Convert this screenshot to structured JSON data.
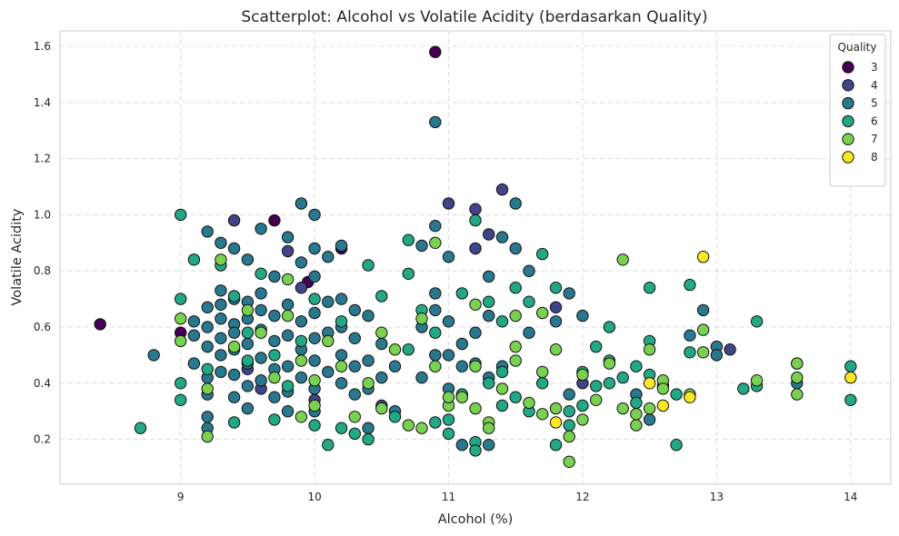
{
  "chart_data": {
    "type": "scatter",
    "title": "Scatterplot: Alcohol vs Volatile Acidity (berdasarkan Quality)",
    "xlabel": "Alcohol (%)",
    "ylabel": "Volatile Acidity",
    "xlim": [
      8.1,
      14.3
    ],
    "ylim": [
      0.04,
      1.655
    ],
    "xticks": [
      9,
      10,
      11,
      12,
      13,
      14
    ],
    "yticks": [
      0.2,
      0.4,
      0.6,
      0.8,
      1.0,
      1.2,
      1.4,
      1.6
    ],
    "ytick_labels": [
      "0.2",
      "0.4",
      "0.6",
      "0.8",
      "1.0",
      "1.2",
      "1.4",
      "1.6"
    ],
    "grid": true,
    "legend": {
      "title": "Quality",
      "placement": "top-right"
    },
    "series": [
      {
        "name": "3",
        "color": "#440154",
        "points": [
          [
            8.4,
            0.61
          ],
          [
            9.0,
            0.58
          ],
          [
            9.7,
            0.98
          ],
          [
            9.95,
            0.76
          ],
          [
            10.2,
            0.88
          ],
          [
            10.9,
            1.58
          ]
        ]
      },
      {
        "name": "4",
        "color": "#414487",
        "points": [
          [
            9.4,
            0.98
          ],
          [
            9.6,
            0.38
          ],
          [
            9.8,
            0.87
          ],
          [
            9.9,
            0.74
          ],
          [
            10.0,
            0.34
          ],
          [
            11.0,
            1.04
          ],
          [
            11.2,
            1.02
          ],
          [
            11.2,
            0.88
          ],
          [
            11.3,
            0.93
          ],
          [
            11.4,
            1.09
          ],
          [
            11.8,
            0.67
          ],
          [
            12.0,
            0.4
          ],
          [
            13.1,
            0.52
          ],
          [
            9.5,
            0.45
          ],
          [
            10.5,
            0.32
          ]
        ]
      },
      {
        "name": "5",
        "color": "#2a788e",
        "points": [
          [
            8.8,
            0.5
          ],
          [
            9.1,
            0.57
          ],
          [
            9.1,
            0.62
          ],
          [
            9.1,
            0.47
          ],
          [
            9.2,
            0.53
          ],
          [
            9.2,
            0.94
          ],
          [
            9.2,
            0.6
          ],
          [
            9.2,
            0.42
          ],
          [
            9.2,
            0.36
          ],
          [
            9.2,
            0.28
          ],
          [
            9.2,
            0.24
          ],
          [
            9.2,
            0.67
          ],
          [
            9.3,
            0.9
          ],
          [
            9.3,
            0.56
          ],
          [
            9.3,
            0.68
          ],
          [
            9.3,
            0.73
          ],
          [
            9.3,
            0.44
          ],
          [
            9.3,
            0.63
          ],
          [
            9.3,
            0.5
          ],
          [
            9.4,
            0.88
          ],
          [
            9.4,
            0.7
          ],
          [
            9.4,
            0.61
          ],
          [
            9.4,
            0.52
          ],
          [
            9.4,
            0.43
          ],
          [
            9.4,
            0.35
          ],
          [
            9.4,
            0.58
          ],
          [
            9.5,
            0.84
          ],
          [
            9.5,
            0.69
          ],
          [
            9.5,
            0.63
          ],
          [
            9.5,
            0.54
          ],
          [
            9.5,
            0.47
          ],
          [
            9.5,
            0.39
          ],
          [
            9.5,
            0.31
          ],
          [
            9.6,
            0.95
          ],
          [
            9.6,
            0.72
          ],
          [
            9.6,
            0.66
          ],
          [
            9.6,
            0.59
          ],
          [
            9.6,
            0.49
          ],
          [
            9.6,
            0.41
          ],
          [
            9.7,
            0.78
          ],
          [
            9.7,
            0.64
          ],
          [
            9.7,
            0.55
          ],
          [
            9.7,
            0.45
          ],
          [
            9.7,
            0.35
          ],
          [
            9.8,
            0.92
          ],
          [
            9.8,
            0.68
          ],
          [
            9.8,
            0.57
          ],
          [
            9.8,
            0.46
          ],
          [
            9.8,
            0.37
          ],
          [
            9.8,
            0.3
          ],
          [
            9.9,
            1.04
          ],
          [
            9.9,
            0.83
          ],
          [
            9.9,
            0.62
          ],
          [
            9.9,
            0.52
          ],
          [
            9.9,
            0.42
          ],
          [
            10.0,
            1.0
          ],
          [
            10.0,
            0.88
          ],
          [
            10.0,
            0.78
          ],
          [
            10.0,
            0.65
          ],
          [
            10.0,
            0.56
          ],
          [
            10.0,
            0.48
          ],
          [
            10.0,
            0.38
          ],
          [
            10.0,
            0.3
          ],
          [
            10.1,
            0.85
          ],
          [
            10.1,
            0.69
          ],
          [
            10.1,
            0.58
          ],
          [
            10.1,
            0.44
          ],
          [
            10.2,
            0.89
          ],
          [
            10.2,
            0.7
          ],
          [
            10.2,
            0.6
          ],
          [
            10.2,
            0.5
          ],
          [
            10.2,
            0.4
          ],
          [
            10.3,
            0.66
          ],
          [
            10.3,
            0.56
          ],
          [
            10.3,
            0.46
          ],
          [
            10.3,
            0.36
          ],
          [
            10.4,
            0.64
          ],
          [
            10.4,
            0.48
          ],
          [
            10.4,
            0.38
          ],
          [
            10.4,
            0.24
          ],
          [
            10.5,
            0.54
          ],
          [
            10.5,
            0.42
          ],
          [
            10.6,
            0.46
          ],
          [
            10.6,
            0.3
          ],
          [
            10.8,
            0.6
          ],
          [
            10.8,
            0.42
          ],
          [
            10.8,
            0.89
          ],
          [
            10.9,
            1.33
          ],
          [
            10.9,
            0.96
          ],
          [
            10.9,
            0.72
          ],
          [
            10.9,
            0.66
          ],
          [
            10.9,
            0.5
          ],
          [
            11.0,
            0.85
          ],
          [
            11.0,
            0.62
          ],
          [
            11.0,
            0.5
          ],
          [
            11.0,
            0.38
          ],
          [
            11.1,
            0.54
          ],
          [
            11.1,
            0.46
          ],
          [
            11.1,
            0.18
          ],
          [
            11.2,
            0.58
          ],
          [
            11.2,
            0.47
          ],
          [
            11.3,
            0.78
          ],
          [
            11.3,
            0.64
          ],
          [
            11.3,
            0.42
          ],
          [
            11.3,
            0.18
          ],
          [
            11.4,
            0.92
          ],
          [
            11.4,
            0.46
          ],
          [
            11.5,
            1.04
          ],
          [
            11.5,
            0.88
          ],
          [
            11.6,
            0.8
          ],
          [
            11.6,
            0.58
          ],
          [
            11.8,
            0.62
          ],
          [
            11.9,
            0.72
          ],
          [
            11.9,
            0.36
          ],
          [
            12.0,
            0.64
          ],
          [
            12.5,
            0.27
          ],
          [
            12.8,
            0.57
          ],
          [
            12.9,
            0.66
          ],
          [
            13.0,
            0.53
          ],
          [
            13.0,
            0.5
          ],
          [
            13.6,
            0.4
          ],
          [
            12.4,
            0.36
          ]
        ]
      },
      {
        "name": "6",
        "color": "#22a884",
        "points": [
          [
            8.7,
            0.24
          ],
          [
            9.0,
            1.0
          ],
          [
            9.0,
            0.7
          ],
          [
            9.0,
            0.4
          ],
          [
            9.0,
            0.34
          ],
          [
            9.1,
            0.84
          ],
          [
            9.2,
            0.45
          ],
          [
            9.3,
            0.82
          ],
          [
            9.4,
            0.26
          ],
          [
            9.4,
            0.71
          ],
          [
            9.5,
            0.58
          ],
          [
            9.5,
            0.48
          ],
          [
            9.6,
            0.79
          ],
          [
            9.7,
            0.5
          ],
          [
            9.7,
            0.27
          ],
          [
            9.8,
            0.39
          ],
          [
            9.9,
            0.55
          ],
          [
            10.0,
            0.25
          ],
          [
            10.0,
            0.7
          ],
          [
            10.1,
            0.18
          ],
          [
            10.2,
            0.62
          ],
          [
            10.2,
            0.24
          ],
          [
            10.3,
            0.22
          ],
          [
            10.4,
            0.2
          ],
          [
            10.4,
            0.82
          ],
          [
            10.5,
            0.71
          ],
          [
            10.6,
            0.28
          ],
          [
            10.7,
            0.91
          ],
          [
            10.7,
            0.79
          ],
          [
            10.7,
            0.52
          ],
          [
            10.8,
            0.66
          ],
          [
            10.9,
            0.58
          ],
          [
            10.9,
            0.26
          ],
          [
            11.0,
            0.27
          ],
          [
            11.0,
            0.22
          ],
          [
            11.1,
            0.72
          ],
          [
            11.1,
            0.36
          ],
          [
            11.2,
            0.98
          ],
          [
            11.2,
            0.19
          ],
          [
            11.2,
            0.16
          ],
          [
            11.3,
            0.69
          ],
          [
            11.3,
            0.4
          ],
          [
            11.4,
            0.62
          ],
          [
            11.4,
            0.44
          ],
          [
            11.4,
            0.32
          ],
          [
            11.5,
            0.74
          ],
          [
            11.5,
            0.35
          ],
          [
            11.6,
            0.69
          ],
          [
            11.6,
            0.3
          ],
          [
            11.7,
            0.86
          ],
          [
            11.7,
            0.4
          ],
          [
            11.8,
            0.74
          ],
          [
            11.8,
            0.18
          ],
          [
            11.9,
            0.3
          ],
          [
            11.9,
            0.25
          ],
          [
            12.0,
            0.44
          ],
          [
            12.0,
            0.32
          ],
          [
            12.1,
            0.53
          ],
          [
            12.1,
            0.39
          ],
          [
            12.2,
            0.6
          ],
          [
            12.2,
            0.48
          ],
          [
            12.2,
            0.4
          ],
          [
            12.3,
            0.42
          ],
          [
            12.4,
            0.46
          ],
          [
            12.4,
            0.33
          ],
          [
            12.5,
            0.74
          ],
          [
            12.5,
            0.55
          ],
          [
            12.5,
            0.43
          ],
          [
            12.6,
            0.39
          ],
          [
            12.7,
            0.36
          ],
          [
            12.7,
            0.18
          ],
          [
            12.8,
            0.75
          ],
          [
            12.8,
            0.51
          ],
          [
            13.2,
            0.38
          ],
          [
            13.3,
            0.62
          ],
          [
            13.3,
            0.39
          ],
          [
            13.6,
            0.47
          ],
          [
            14.0,
            0.46
          ],
          [
            14.0,
            0.34
          ]
        ]
      },
      {
        "name": "7",
        "color": "#7ad151",
        "points": [
          [
            9.0,
            0.63
          ],
          [
            9.0,
            0.55
          ],
          [
            9.2,
            0.21
          ],
          [
            9.2,
            0.38
          ],
          [
            9.3,
            0.84
          ],
          [
            9.4,
            0.53
          ],
          [
            9.5,
            0.66
          ],
          [
            9.6,
            0.58
          ],
          [
            9.7,
            0.42
          ],
          [
            9.8,
            0.77
          ],
          [
            9.8,
            0.64
          ],
          [
            9.9,
            0.28
          ],
          [
            9.9,
            0.48
          ],
          [
            10.0,
            0.41
          ],
          [
            10.0,
            0.32
          ],
          [
            10.1,
            0.55
          ],
          [
            10.2,
            0.46
          ],
          [
            10.3,
            0.28
          ],
          [
            10.4,
            0.4
          ],
          [
            10.5,
            0.31
          ],
          [
            10.5,
            0.58
          ],
          [
            10.6,
            0.52
          ],
          [
            10.7,
            0.25
          ],
          [
            10.8,
            0.63
          ],
          [
            10.8,
            0.24
          ],
          [
            10.9,
            0.9
          ],
          [
            10.9,
            0.46
          ],
          [
            11.0,
            0.32
          ],
          [
            11.0,
            0.35
          ],
          [
            11.1,
            0.35
          ],
          [
            11.2,
            0.68
          ],
          [
            11.2,
            0.46
          ],
          [
            11.2,
            0.31
          ],
          [
            11.3,
            0.26
          ],
          [
            11.3,
            0.24
          ],
          [
            11.4,
            0.38
          ],
          [
            11.5,
            0.53
          ],
          [
            11.5,
            0.48
          ],
          [
            11.5,
            0.64
          ],
          [
            11.6,
            0.33
          ],
          [
            11.7,
            0.65
          ],
          [
            11.7,
            0.44
          ],
          [
            11.7,
            0.29
          ],
          [
            11.8,
            0.52
          ],
          [
            11.8,
            0.31
          ],
          [
            11.9,
            0.12
          ],
          [
            11.9,
            0.21
          ],
          [
            12.0,
            0.27
          ],
          [
            12.0,
            0.43
          ],
          [
            12.1,
            0.34
          ],
          [
            12.2,
            0.47
          ],
          [
            12.3,
            0.84
          ],
          [
            12.3,
            0.31
          ],
          [
            12.4,
            0.25
          ],
          [
            12.4,
            0.29
          ],
          [
            12.5,
            0.52
          ],
          [
            12.5,
            0.31
          ],
          [
            12.6,
            0.41
          ],
          [
            12.6,
            0.38
          ],
          [
            12.8,
            0.36
          ],
          [
            12.9,
            0.51
          ],
          [
            12.9,
            0.59
          ],
          [
            13.3,
            0.41
          ],
          [
            13.6,
            0.47
          ],
          [
            13.6,
            0.42
          ],
          [
            13.6,
            0.36
          ]
        ]
      },
      {
        "name": "8",
        "color": "#fde725",
        "points": [
          [
            11.8,
            0.26
          ],
          [
            12.5,
            0.4
          ],
          [
            12.6,
            0.32
          ],
          [
            12.8,
            0.35
          ],
          [
            12.9,
            0.85
          ],
          [
            14.0,
            0.42
          ]
        ]
      }
    ]
  }
}
